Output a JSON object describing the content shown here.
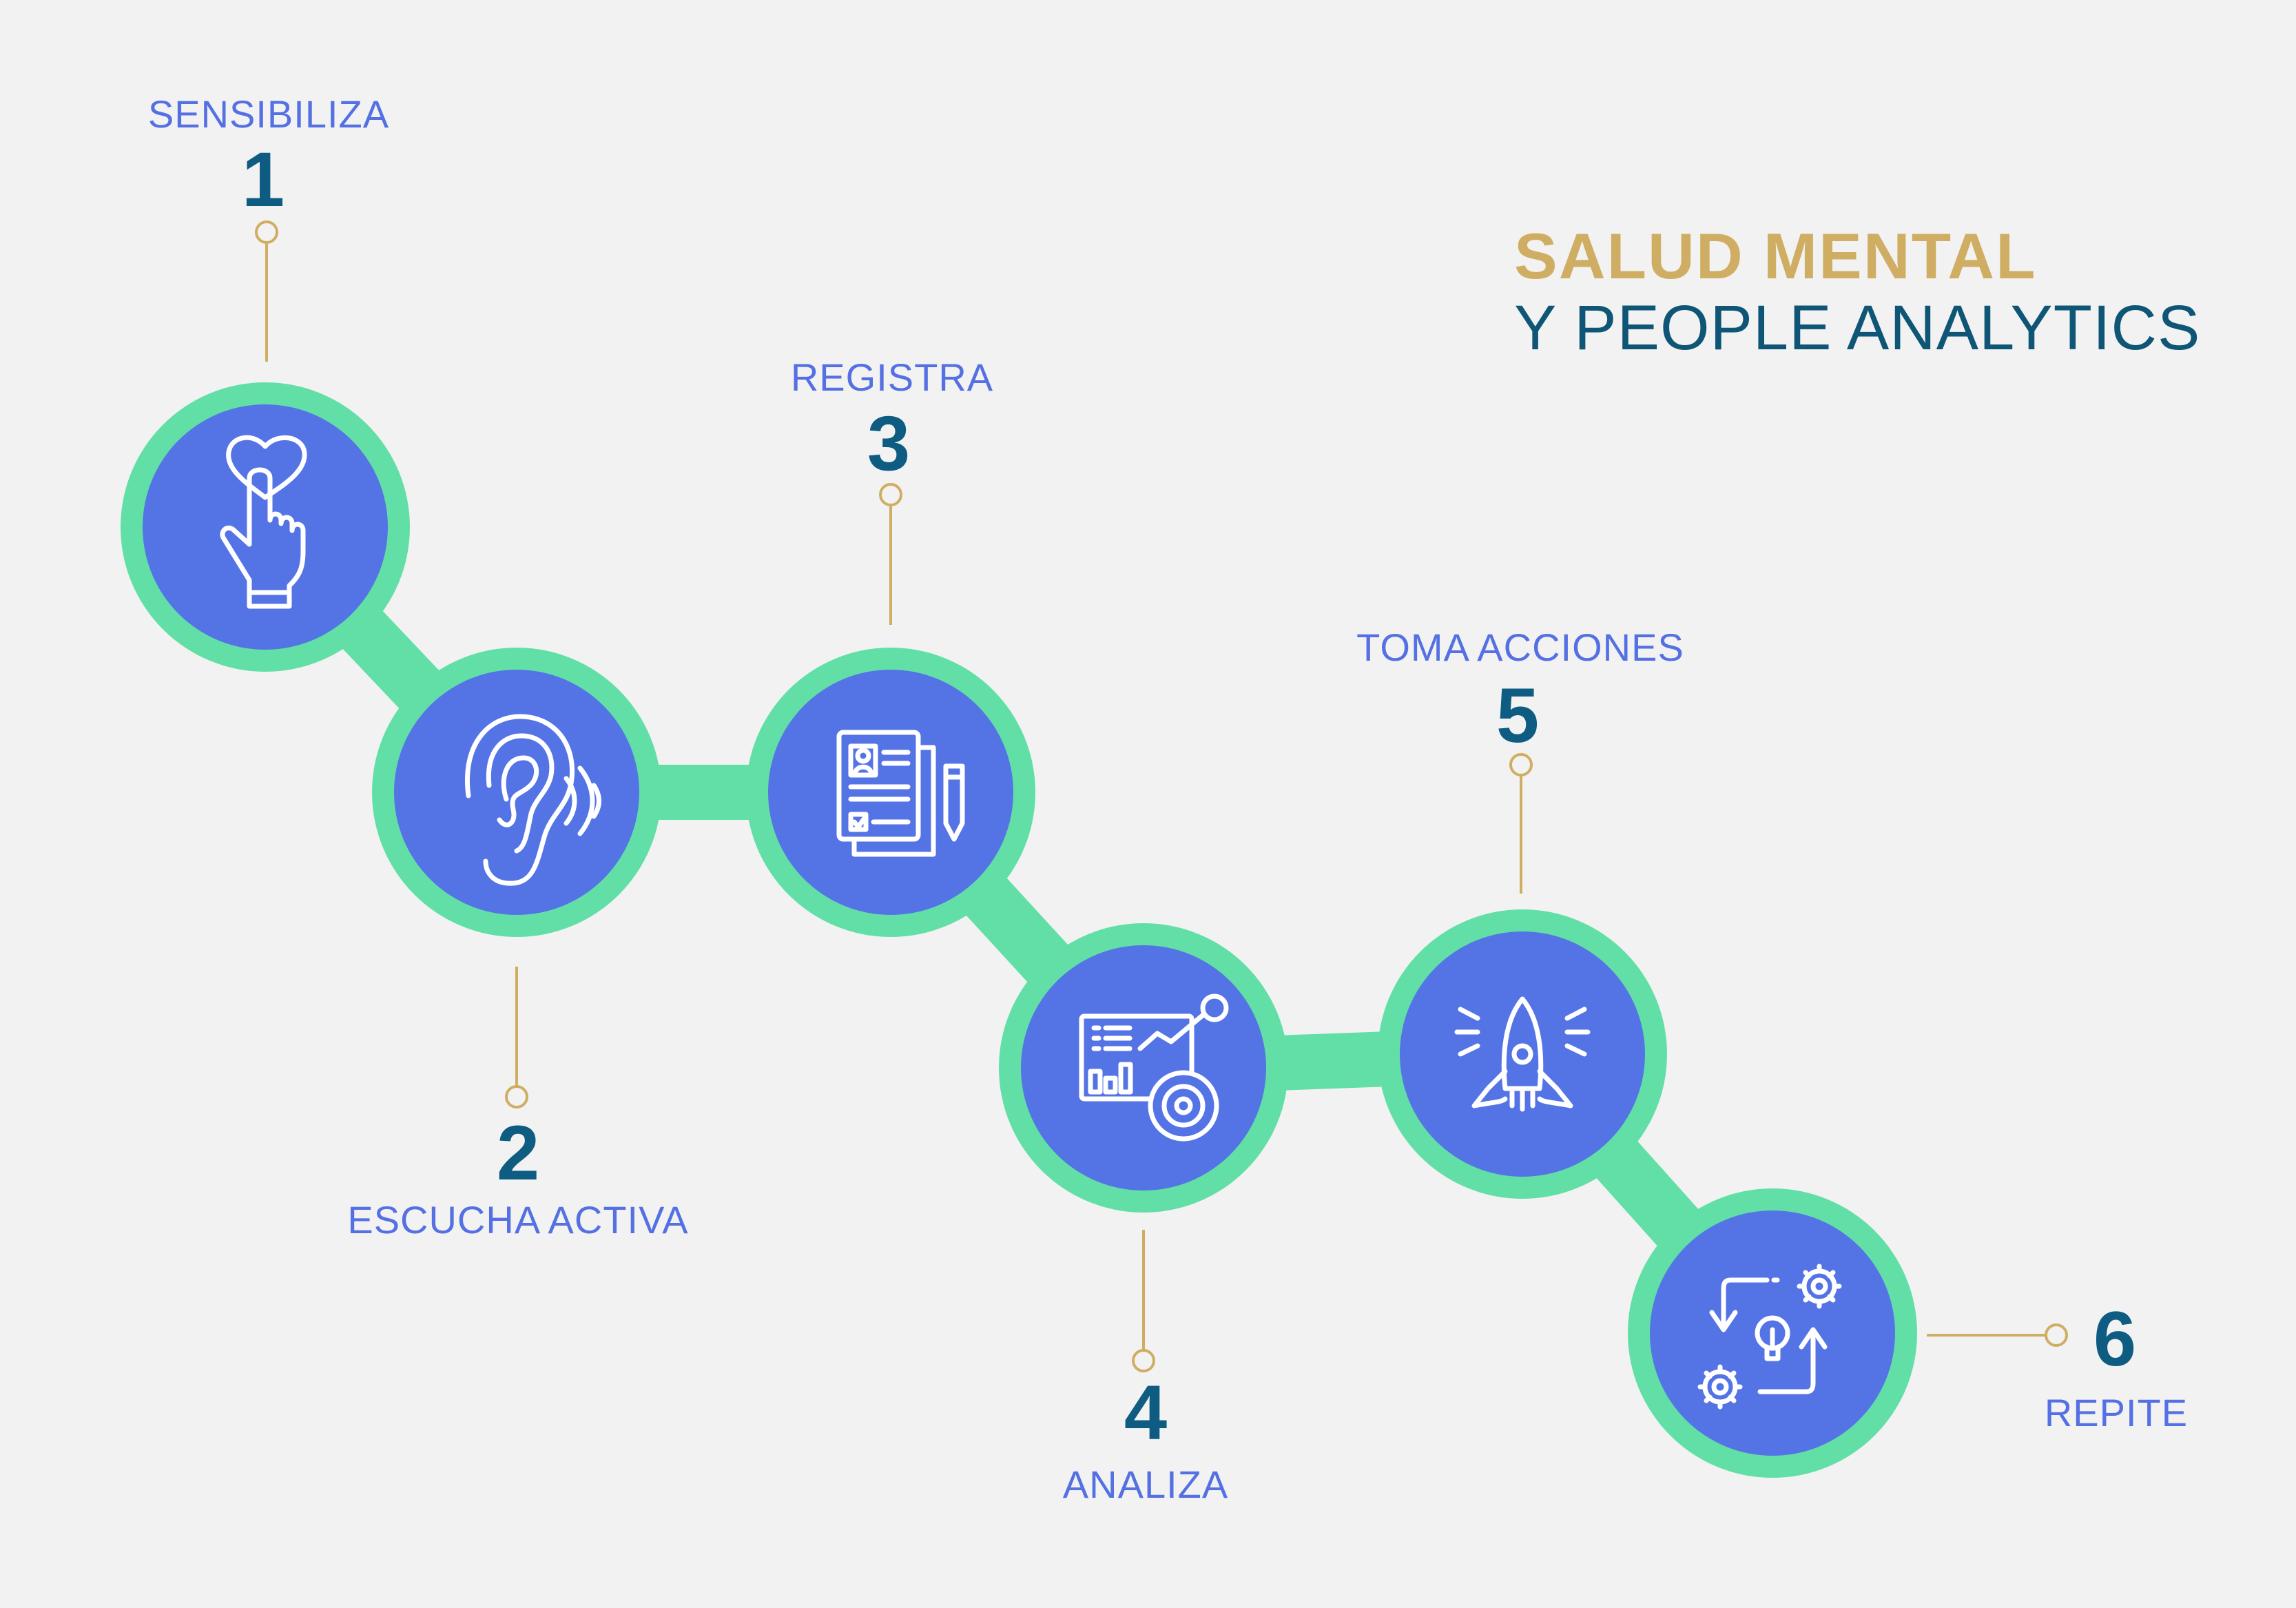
{
  "title": {
    "line1": "SALUD MENTAL",
    "line2": "Y PEOPLE ANALYTICS"
  },
  "colors": {
    "background": "#f2f2f2",
    "ring": "#62dfa6",
    "node": "#5474e6",
    "connector": "#cfae63",
    "number": "#0f5c82",
    "label": "#5470e3",
    "title_gold": "#cfae63",
    "title_dark": "#0f5575",
    "icon": "#ffffff"
  },
  "steps": [
    {
      "number": "1",
      "label": "SENSIBILIZA",
      "icon": "heart-touch-icon"
    },
    {
      "number": "2",
      "label": "ESCUCHA ACTIVA",
      "icon": "ear-listening-icon"
    },
    {
      "number": "3",
      "label": "REGISTRA",
      "icon": "document-register-icon"
    },
    {
      "number": "4",
      "label": "ANALIZA",
      "icon": "analytics-dashboard-icon"
    },
    {
      "number": "5",
      "label": "TOMA ACCIONES",
      "icon": "rocket-icon"
    },
    {
      "number": "6",
      "label": "REPITE",
      "icon": "repeat-process-icon"
    }
  ]
}
